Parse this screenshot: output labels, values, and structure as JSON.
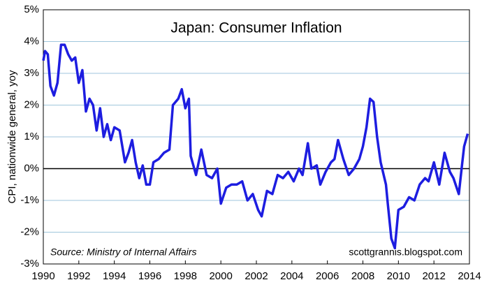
{
  "chart_data": {
    "type": "line",
    "title": "Japan: Consumer Inflation",
    "y_label": "CPI, nationwide general, yoy",
    "annotations": [
      "Source:  Ministry of Internal Affairs",
      "scottgrannis.blogspot.com"
    ],
    "xlim": [
      1990,
      2014
    ],
    "xticks": [
      1990,
      1992,
      1994,
      1996,
      1998,
      2000,
      2002,
      2004,
      2006,
      2008,
      2010,
      2012,
      2014
    ],
    "ylim": [
      -3,
      5
    ],
    "yticks": [
      {
        "value": -3,
        "label": "-3%"
      },
      {
        "value": -2,
        "label": "-2%"
      },
      {
        "value": -1,
        "label": "-1%"
      },
      {
        "value": 0,
        "label": "0%"
      },
      {
        "value": 1,
        "label": "1%"
      },
      {
        "value": 2,
        "label": "2%"
      },
      {
        "value": 3,
        "label": "3%"
      },
      {
        "value": 4,
        "label": "4%"
      },
      {
        "value": 5,
        "label": "5%"
      }
    ],
    "grid": true,
    "x": [
      1990.0,
      1990.1,
      1990.25,
      1990.4,
      1990.6,
      1990.8,
      1991.0,
      1991.2,
      1991.4,
      1991.6,
      1991.8,
      1992.0,
      1992.2,
      1992.4,
      1992.6,
      1992.8,
      1993.0,
      1993.2,
      1993.4,
      1993.6,
      1993.8,
      1994.0,
      1994.3,
      1994.6,
      1994.8,
      1995.0,
      1995.2,
      1995.4,
      1995.6,
      1995.8,
      1996.0,
      1996.2,
      1996.5,
      1996.8,
      1997.1,
      1997.3,
      1997.6,
      1997.8,
      1998.0,
      1998.2,
      1998.3,
      1998.6,
      1998.9,
      1999.2,
      1999.5,
      1999.8,
      2000.0,
      2000.3,
      2000.6,
      2000.9,
      2001.2,
      2001.5,
      2001.8,
      2002.1,
      2002.3,
      2002.6,
      2002.9,
      2003.2,
      2003.5,
      2003.8,
      2004.1,
      2004.4,
      2004.6,
      2004.9,
      2005.1,
      2005.4,
      2005.6,
      2005.9,
      2006.2,
      2006.4,
      2006.6,
      2006.9,
      2007.2,
      2007.5,
      2007.8,
      2008.0,
      2008.2,
      2008.4,
      2008.6,
      2008.8,
      2009.0,
      2009.3,
      2009.4,
      2009.6,
      2009.8,
      2010.0,
      2010.3,
      2010.6,
      2010.9,
      2011.2,
      2011.5,
      2011.7,
      2012.0,
      2012.3,
      2012.6,
      2012.9,
      2013.1,
      2013.4,
      2013.6,
      2013.7,
      2013.9
    ],
    "series": [
      {
        "name": "CPI",
        "color": "#1d1de0",
        "values": [
          3.4,
          3.7,
          3.6,
          2.6,
          2.3,
          2.7,
          3.9,
          3.9,
          3.6,
          3.4,
          3.5,
          2.7,
          3.1,
          1.8,
          2.2,
          2.0,
          1.2,
          1.9,
          1.0,
          1.4,
          0.9,
          1.3,
          1.2,
          0.2,
          0.5,
          0.9,
          0.2,
          -0.3,
          0.1,
          -0.5,
          -0.5,
          0.2,
          0.3,
          0.5,
          0.6,
          2.0,
          2.2,
          2.5,
          1.9,
          2.2,
          0.4,
          -0.2,
          0.6,
          -0.2,
          -0.3,
          0.0,
          -1.1,
          -0.6,
          -0.5,
          -0.5,
          -0.4,
          -1.0,
          -0.8,
          -1.3,
          -1.5,
          -0.7,
          -0.8,
          -0.2,
          -0.3,
          -0.1,
          -0.4,
          0.0,
          -0.2,
          0.8,
          0.0,
          0.1,
          -0.5,
          -0.1,
          0.2,
          0.3,
          0.9,
          0.3,
          -0.2,
          0.0,
          0.3,
          0.7,
          1.3,
          2.2,
          2.1,
          1.0,
          0.2,
          -0.5,
          -1.1,
          -2.2,
          -2.5,
          -1.3,
          -1.2,
          -0.9,
          -1.0,
          -0.5,
          -0.3,
          -0.4,
          0.2,
          -0.5,
          0.5,
          -0.1,
          -0.3,
          -0.8,
          0.2,
          0.7,
          1.1
        ]
      }
    ]
  }
}
